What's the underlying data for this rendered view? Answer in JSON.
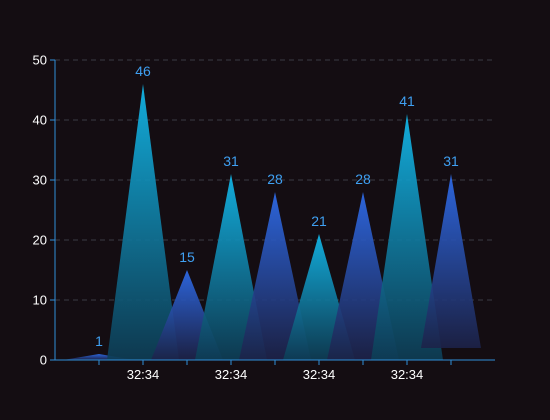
{
  "chart_data": {
    "type": "bar",
    "bar_shape": "pictorial-triangle",
    "categories": [
      "",
      "32:34",
      "",
      "32:34",
      "",
      "32:34",
      "",
      "32:34",
      ""
    ],
    "values": [
      1,
      46,
      15,
      31,
      28,
      21,
      28,
      41,
      31
    ],
    "ylim": [
      0,
      50
    ],
    "yticks": [
      0,
      10,
      20,
      30,
      40,
      50
    ],
    "grid": true,
    "grid_style": "dashed",
    "data_labels": true,
    "colors": {
      "background": "#140d12",
      "axis": "#2f8fd8",
      "grid": "#3a3a44",
      "label": "#3fa0f2",
      "cyan_top": "#12bdf0",
      "cyan_bottom": "#0d3d55",
      "blue_top": "#2f6ef0",
      "blue_bottom": "#1c2248"
    },
    "bar_palette": [
      "blue",
      "cyan",
      "blue",
      "cyan",
      "blue",
      "cyan",
      "blue",
      "cyan",
      "blue"
    ]
  }
}
